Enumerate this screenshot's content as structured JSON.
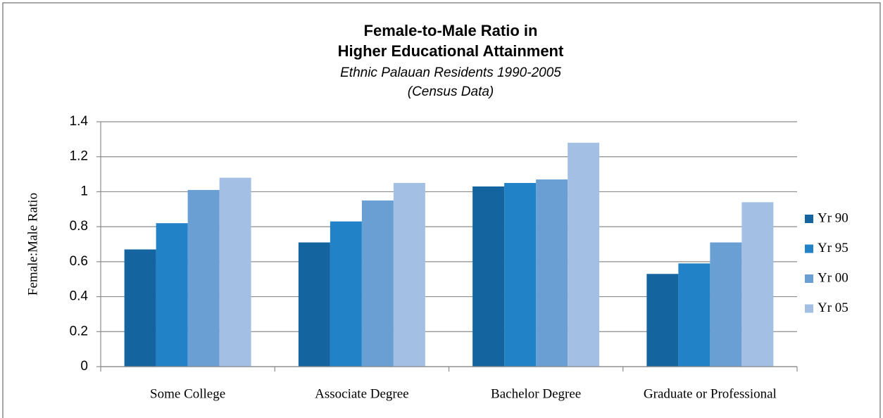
{
  "chart_data": {
    "type": "bar",
    "title": [
      "Female-to-Male Ratio in",
      "Higher Educational Attainment"
    ],
    "subtitle": [
      "Ethnic Palauan Residents 1990-2005",
      "(Census Data)"
    ],
    "ylabel": "Female:Male Ratio",
    "categories": [
      "Some College",
      "Associate Degree",
      "Bachelor Degree",
      "Graduate or Professional"
    ],
    "series": [
      {
        "name": "Yr 90",
        "color": "#1464a0",
        "values": [
          0.67,
          0.71,
          1.03,
          0.53
        ]
      },
      {
        "name": "Yr 95",
        "color": "#2282c8",
        "values": [
          0.82,
          0.83,
          1.05,
          0.59
        ]
      },
      {
        "name": "Yr 00",
        "color": "#6a9fd4",
        "values": [
          1.01,
          0.95,
          1.07,
          0.71
        ]
      },
      {
        "name": "Yr 05",
        "color": "#a3c0e4",
        "values": [
          1.08,
          1.05,
          1.28,
          0.94
        ]
      }
    ],
    "ylim": [
      0,
      1.4
    ],
    "yticks": [
      0,
      0.2,
      0.4,
      0.6,
      0.8,
      1,
      1.2,
      1.4
    ],
    "grid": true,
    "legend": "right"
  }
}
